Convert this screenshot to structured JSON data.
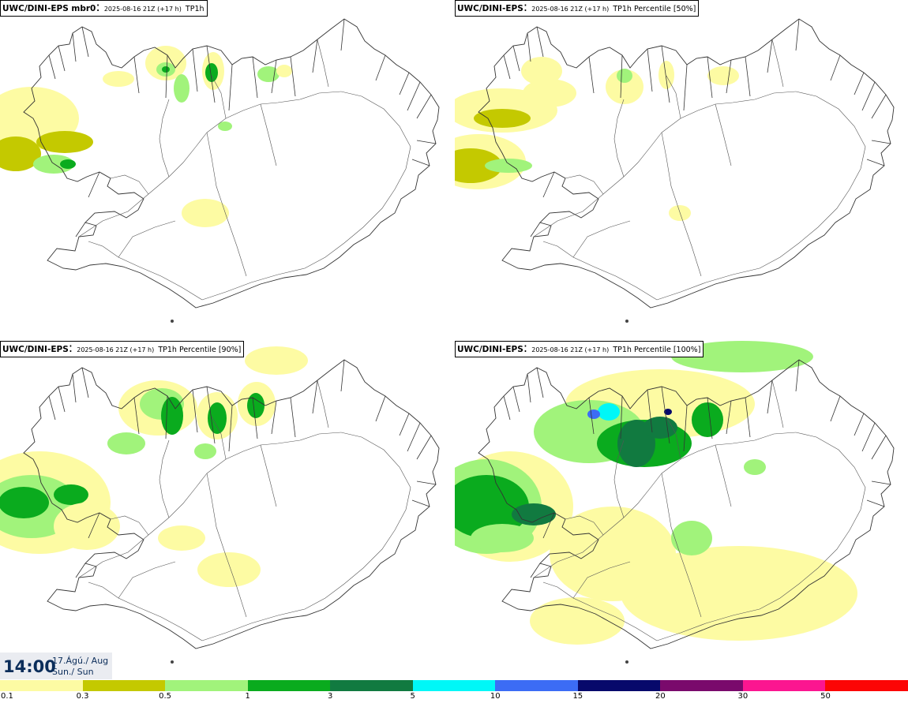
{
  "panels": [
    {
      "model": "UWC/DINI-EPS mbr0",
      "date": "2025-08-16 21Z (+17 h)",
      "variable": "TP1h",
      "intensity": 1
    },
    {
      "model": "UWC/DINI-EPS",
      "date": "2025-08-16 21Z (+17 h)",
      "variable": "TP1h Percentile [50%]",
      "intensity": 0
    },
    {
      "model": "UWC/DINI-EPS",
      "date": "2025-08-16 21Z (+17 h)",
      "variable": "TP1h Percentile [90%]",
      "intensity": 2
    },
    {
      "model": "UWC/DINI-EPS",
      "date": "2025-08-16 21Z (+17 h)",
      "variable": "TP1h Percentile [100%]",
      "intensity": 3
    }
  ],
  "time": {
    "hour": "14:00",
    "date_line": "17.Ágú./ Aug",
    "day_line": "Sun./ Sun"
  },
  "legend": {
    "labels": [
      "0.1",
      "0.3",
      "0.5",
      "1",
      "3",
      "5",
      "10",
      "15",
      "20",
      "30",
      "50"
    ],
    "colors": [
      "#fdfba3",
      "#c4c900",
      "#a1f37b",
      "#0aab1e",
      "#117a40",
      "#00f7f7",
      "#3c6cf5",
      "#07096b",
      "#7a0a6c",
      "#fb1690",
      "#fc0505"
    ]
  }
}
